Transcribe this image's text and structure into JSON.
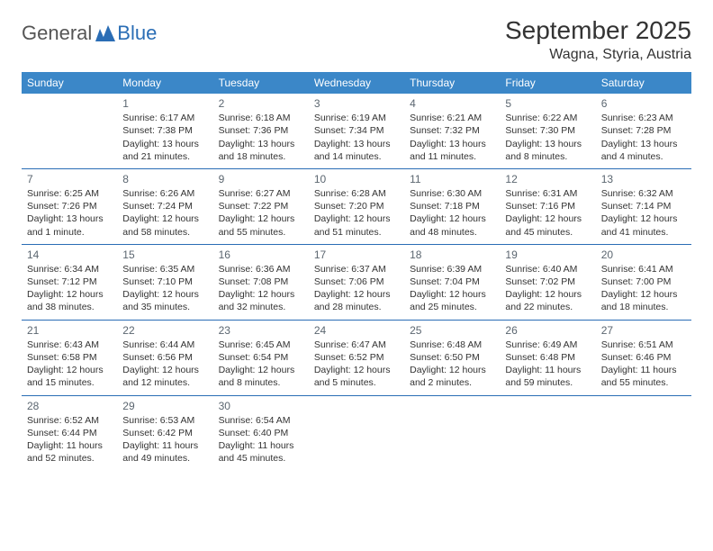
{
  "logo": {
    "general": "General",
    "blue": "Blue"
  },
  "title": "September 2025",
  "location": "Wagna, Styria, Austria",
  "colors": {
    "header_bg": "#3b87c8",
    "header_text": "#ffffff",
    "rule": "#2a6db5",
    "daynum": "#5b6670",
    "text": "#333333",
    "logo_gray": "#555555",
    "logo_blue": "#2a6db5"
  },
  "weekdays": [
    "Sunday",
    "Monday",
    "Tuesday",
    "Wednesday",
    "Thursday",
    "Friday",
    "Saturday"
  ],
  "weeks": [
    [
      null,
      {
        "n": "1",
        "sr": "Sunrise: 6:17 AM",
        "ss": "Sunset: 7:38 PM",
        "dl": "Daylight: 13 hours and 21 minutes."
      },
      {
        "n": "2",
        "sr": "Sunrise: 6:18 AM",
        "ss": "Sunset: 7:36 PM",
        "dl": "Daylight: 13 hours and 18 minutes."
      },
      {
        "n": "3",
        "sr": "Sunrise: 6:19 AM",
        "ss": "Sunset: 7:34 PM",
        "dl": "Daylight: 13 hours and 14 minutes."
      },
      {
        "n": "4",
        "sr": "Sunrise: 6:21 AM",
        "ss": "Sunset: 7:32 PM",
        "dl": "Daylight: 13 hours and 11 minutes."
      },
      {
        "n": "5",
        "sr": "Sunrise: 6:22 AM",
        "ss": "Sunset: 7:30 PM",
        "dl": "Daylight: 13 hours and 8 minutes."
      },
      {
        "n": "6",
        "sr": "Sunrise: 6:23 AM",
        "ss": "Sunset: 7:28 PM",
        "dl": "Daylight: 13 hours and 4 minutes."
      }
    ],
    [
      {
        "n": "7",
        "sr": "Sunrise: 6:25 AM",
        "ss": "Sunset: 7:26 PM",
        "dl": "Daylight: 13 hours and 1 minute."
      },
      {
        "n": "8",
        "sr": "Sunrise: 6:26 AM",
        "ss": "Sunset: 7:24 PM",
        "dl": "Daylight: 12 hours and 58 minutes."
      },
      {
        "n": "9",
        "sr": "Sunrise: 6:27 AM",
        "ss": "Sunset: 7:22 PM",
        "dl": "Daylight: 12 hours and 55 minutes."
      },
      {
        "n": "10",
        "sr": "Sunrise: 6:28 AM",
        "ss": "Sunset: 7:20 PM",
        "dl": "Daylight: 12 hours and 51 minutes."
      },
      {
        "n": "11",
        "sr": "Sunrise: 6:30 AM",
        "ss": "Sunset: 7:18 PM",
        "dl": "Daylight: 12 hours and 48 minutes."
      },
      {
        "n": "12",
        "sr": "Sunrise: 6:31 AM",
        "ss": "Sunset: 7:16 PM",
        "dl": "Daylight: 12 hours and 45 minutes."
      },
      {
        "n": "13",
        "sr": "Sunrise: 6:32 AM",
        "ss": "Sunset: 7:14 PM",
        "dl": "Daylight: 12 hours and 41 minutes."
      }
    ],
    [
      {
        "n": "14",
        "sr": "Sunrise: 6:34 AM",
        "ss": "Sunset: 7:12 PM",
        "dl": "Daylight: 12 hours and 38 minutes."
      },
      {
        "n": "15",
        "sr": "Sunrise: 6:35 AM",
        "ss": "Sunset: 7:10 PM",
        "dl": "Daylight: 12 hours and 35 minutes."
      },
      {
        "n": "16",
        "sr": "Sunrise: 6:36 AM",
        "ss": "Sunset: 7:08 PM",
        "dl": "Daylight: 12 hours and 32 minutes."
      },
      {
        "n": "17",
        "sr": "Sunrise: 6:37 AM",
        "ss": "Sunset: 7:06 PM",
        "dl": "Daylight: 12 hours and 28 minutes."
      },
      {
        "n": "18",
        "sr": "Sunrise: 6:39 AM",
        "ss": "Sunset: 7:04 PM",
        "dl": "Daylight: 12 hours and 25 minutes."
      },
      {
        "n": "19",
        "sr": "Sunrise: 6:40 AM",
        "ss": "Sunset: 7:02 PM",
        "dl": "Daylight: 12 hours and 22 minutes."
      },
      {
        "n": "20",
        "sr": "Sunrise: 6:41 AM",
        "ss": "Sunset: 7:00 PM",
        "dl": "Daylight: 12 hours and 18 minutes."
      }
    ],
    [
      {
        "n": "21",
        "sr": "Sunrise: 6:43 AM",
        "ss": "Sunset: 6:58 PM",
        "dl": "Daylight: 12 hours and 15 minutes."
      },
      {
        "n": "22",
        "sr": "Sunrise: 6:44 AM",
        "ss": "Sunset: 6:56 PM",
        "dl": "Daylight: 12 hours and 12 minutes."
      },
      {
        "n": "23",
        "sr": "Sunrise: 6:45 AM",
        "ss": "Sunset: 6:54 PM",
        "dl": "Daylight: 12 hours and 8 minutes."
      },
      {
        "n": "24",
        "sr": "Sunrise: 6:47 AM",
        "ss": "Sunset: 6:52 PM",
        "dl": "Daylight: 12 hours and 5 minutes."
      },
      {
        "n": "25",
        "sr": "Sunrise: 6:48 AM",
        "ss": "Sunset: 6:50 PM",
        "dl": "Daylight: 12 hours and 2 minutes."
      },
      {
        "n": "26",
        "sr": "Sunrise: 6:49 AM",
        "ss": "Sunset: 6:48 PM",
        "dl": "Daylight: 11 hours and 59 minutes."
      },
      {
        "n": "27",
        "sr": "Sunrise: 6:51 AM",
        "ss": "Sunset: 6:46 PM",
        "dl": "Daylight: 11 hours and 55 minutes."
      }
    ],
    [
      {
        "n": "28",
        "sr": "Sunrise: 6:52 AM",
        "ss": "Sunset: 6:44 PM",
        "dl": "Daylight: 11 hours and 52 minutes."
      },
      {
        "n": "29",
        "sr": "Sunrise: 6:53 AM",
        "ss": "Sunset: 6:42 PM",
        "dl": "Daylight: 11 hours and 49 minutes."
      },
      {
        "n": "30",
        "sr": "Sunrise: 6:54 AM",
        "ss": "Sunset: 6:40 PM",
        "dl": "Daylight: 11 hours and 45 minutes."
      },
      null,
      null,
      null,
      null
    ]
  ]
}
